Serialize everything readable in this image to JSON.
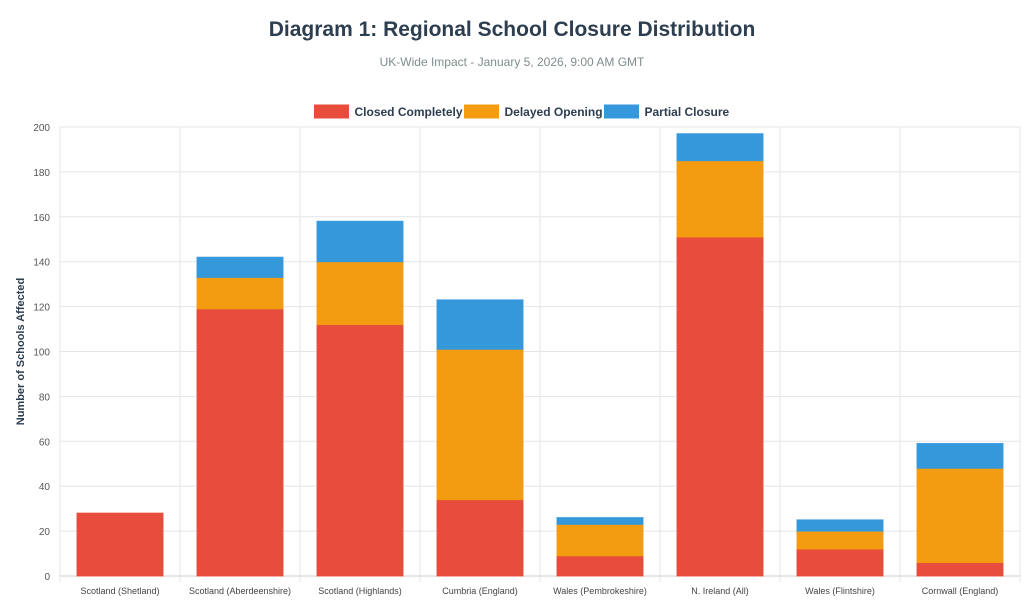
{
  "chart_data": {
    "type": "bar",
    "stacked": true,
    "title": "Diagram 1: Regional School Closure Distribution",
    "subtitle": "UK-Wide Impact - January 5, 2026, 9:00 AM GMT",
    "xlabel": "",
    "ylabel": "Number of Schools Affected",
    "ylim": [
      0,
      200
    ],
    "yticks": [
      0,
      20,
      40,
      60,
      80,
      100,
      120,
      140,
      160,
      180,
      200
    ],
    "grid": true,
    "legend_position": "top",
    "categories": [
      "Scotland (Shetland)",
      "Scotland (Aberdeenshire)",
      "Scotland (Highlands)",
      "Cumbria (England)",
      "Wales (Pembrokeshire)",
      "N. Ireland (All)",
      "Wales (Flintshire)",
      "Cornwall (England)"
    ],
    "series": [
      {
        "name": "Closed Completely",
        "color": "#e74c3c",
        "values": [
          28,
          119,
          112,
          34,
          9,
          151,
          12,
          6
        ]
      },
      {
        "name": "Delayed Opening",
        "color": "#f39c12",
        "values": [
          0,
          14,
          28,
          67,
          14,
          34,
          8,
          42
        ]
      },
      {
        "name": "Partial Closure",
        "color": "#3498db",
        "values": [
          0,
          9,
          18,
          22,
          3,
          12,
          5,
          11
        ]
      }
    ]
  }
}
